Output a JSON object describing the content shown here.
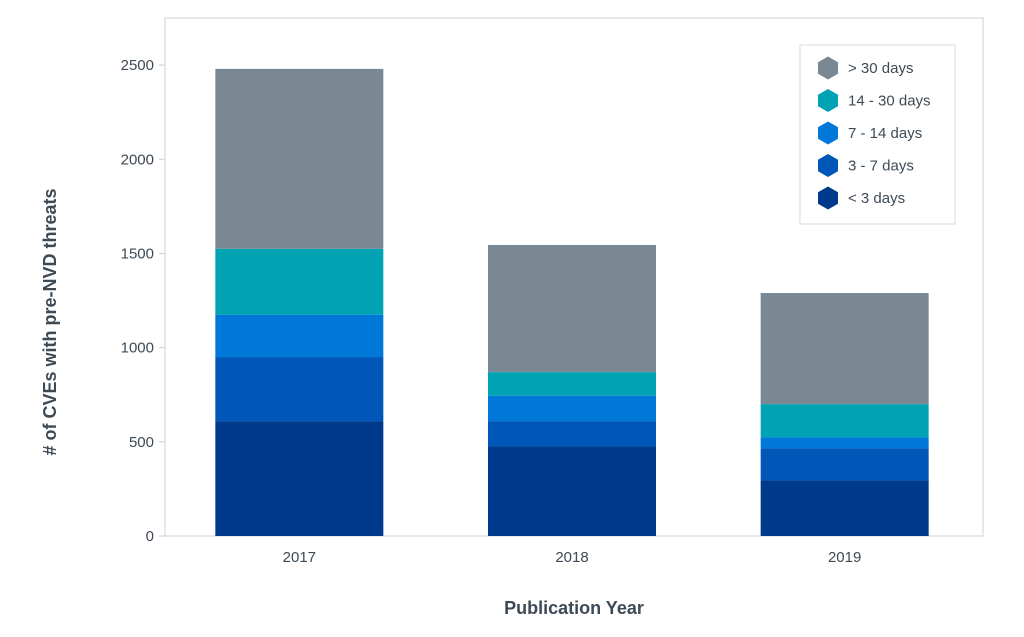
{
  "chart_data": {
    "type": "bar",
    "stacked": true,
    "categories": [
      "2017",
      "2018",
      "2019"
    ],
    "xlabel": "Publication Year",
    "ylabel": "# of CVEs with pre-NVD threats",
    "ylim": [
      0,
      2750
    ],
    "yticks": [
      0,
      500,
      1000,
      1500,
      2000,
      2500
    ],
    "grid": false,
    "legend_position": "top-right",
    "series": [
      {
        "name": "< 3 days",
        "color": "#003a8c",
        "values": [
          610,
          475,
          295
        ]
      },
      {
        "name": "3 - 7 days",
        "color": "#0057b8",
        "values": [
          340,
          135,
          170
        ]
      },
      {
        "name": "7 - 14 days",
        "color": "#0078d9",
        "values": [
          225,
          135,
          60
        ]
      },
      {
        "name": "14 - 30 days",
        "color": "#00a3b4",
        "values": [
          350,
          125,
          175
        ]
      },
      {
        "name": "> 30 days",
        "color": "#798893",
        "values": [
          955,
          675,
          590
        ]
      }
    ],
    "legend_order": [
      "> 30 days",
      "14 - 30 days",
      "7 - 14 days",
      "3 - 7 days",
      "< 3 days"
    ]
  }
}
